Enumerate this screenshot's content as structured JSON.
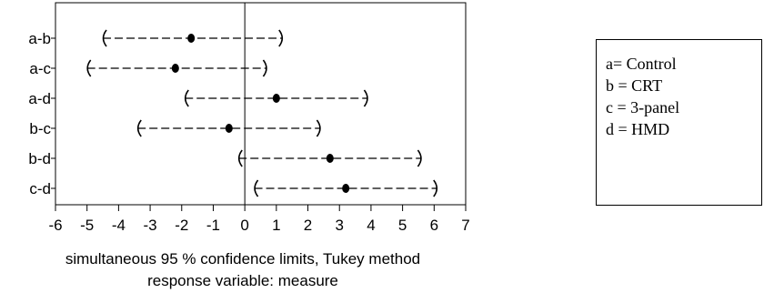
{
  "chart_data": {
    "type": "interval",
    "categories": [
      "a-b",
      "a-c",
      "a-d",
      "b-c",
      "b-d",
      "c-d"
    ],
    "intervals": [
      {
        "label": "a-b",
        "lower": -4.5,
        "estimate": -1.7,
        "upper": 1.2
      },
      {
        "label": "a-c",
        "lower": -5.0,
        "estimate": -2.2,
        "upper": 0.7
      },
      {
        "label": "a-d",
        "lower": -1.9,
        "estimate": 1.0,
        "upper": 3.9
      },
      {
        "label": "b-c",
        "lower": -3.4,
        "estimate": -0.5,
        "upper": 2.4
      },
      {
        "label": "b-d",
        "lower": -0.2,
        "estimate": 2.7,
        "upper": 5.6
      },
      {
        "label": "c-d",
        "lower": 0.3,
        "estimate": 3.2,
        "upper": 6.1
      }
    ],
    "xticks": [
      "-6",
      "-5",
      "-4",
      "-3",
      "-2",
      "-1",
      "0",
      "1",
      "2",
      "3",
      "4",
      "5",
      "6",
      "7"
    ],
    "xlim": [
      -6,
      7
    ],
    "xlabel_line1": "simultaneous  95 % confidence limits, Tukey method",
    "xlabel_line2": "response variable: measure",
    "reference_line": 0,
    "grid": false
  },
  "legend": {
    "entries": [
      "a= Control",
      "b = CRT",
      "c = 3-panel",
      "d = HMD"
    ]
  }
}
